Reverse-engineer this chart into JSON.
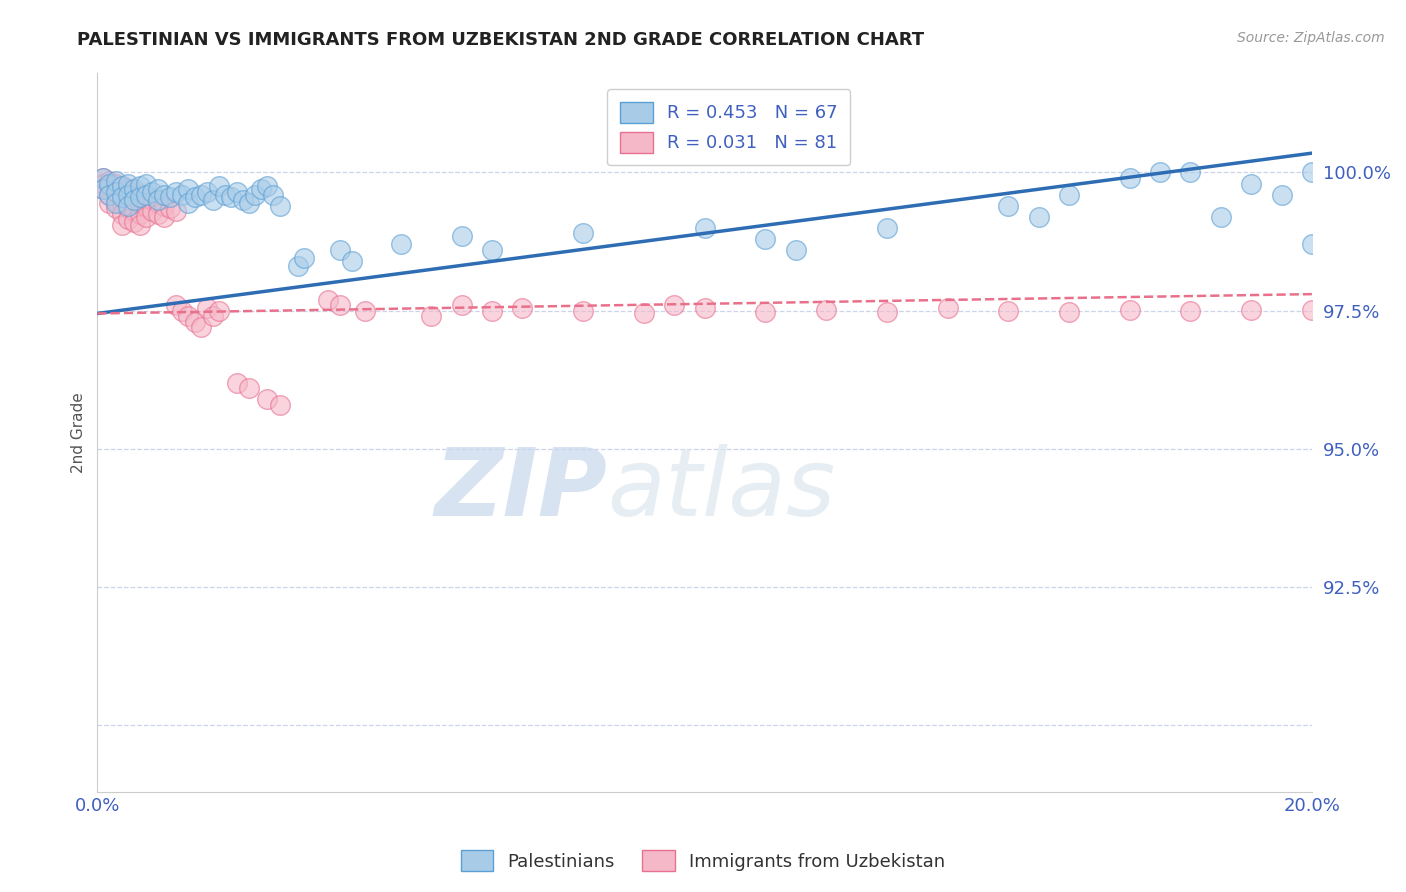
{
  "title": "PALESTINIAN VS IMMIGRANTS FROM UZBEKISTAN 2ND GRADE CORRELATION CHART",
  "source": "Source: ZipAtlas.com",
  "ylabel": "2nd Grade",
  "xmin": 0.0,
  "xmax": 0.2,
  "ymin": 0.888,
  "ymax": 1.018,
  "yticks": [
    0.9,
    0.925,
    0.95,
    0.975,
    1.0
  ],
  "ytick_labels": [
    "",
    "92.5%",
    "95.0%",
    "97.5%",
    "100.0%"
  ],
  "xticks": [
    0.0,
    0.05,
    0.1,
    0.15,
    0.2
  ],
  "xtick_labels": [
    "0.0%",
    "",
    "",
    "",
    "20.0%"
  ],
  "blue_R": 0.453,
  "blue_N": 67,
  "pink_R": 0.031,
  "pink_N": 81,
  "blue_color": "#a8cce8",
  "blue_edge_color": "#5b9fd4",
  "pink_color": "#f5b8c8",
  "pink_edge_color": "#e87090",
  "trend_blue_color": "#2e6db4",
  "trend_pink_color": "#e8708a",
  "grid_color": "#c8cfe8",
  "legend_label_blue": "Palestinians",
  "legend_label_pink": "Immigrants from Uzbekistan",
  "watermark_zip": "ZIP",
  "watermark_atlas": "atlas",
  "blue_scatter": [
    [
      0.001,
      0.999
    ],
    [
      0.001,
      0.997
    ],
    [
      0.002,
      0.998
    ],
    [
      0.002,
      0.996
    ],
    [
      0.003,
      0.9985
    ],
    [
      0.003,
      0.9965
    ],
    [
      0.003,
      0.9945
    ],
    [
      0.004,
      0.9975
    ],
    [
      0.004,
      0.9955
    ],
    [
      0.005,
      0.998
    ],
    [
      0.005,
      0.996
    ],
    [
      0.005,
      0.994
    ],
    [
      0.006,
      0.997
    ],
    [
      0.006,
      0.995
    ],
    [
      0.007,
      0.9975
    ],
    [
      0.007,
      0.9955
    ],
    [
      0.008,
      0.998
    ],
    [
      0.008,
      0.996
    ],
    [
      0.009,
      0.9965
    ],
    [
      0.01,
      0.997
    ],
    [
      0.01,
      0.995
    ],
    [
      0.011,
      0.996
    ],
    [
      0.012,
      0.9955
    ],
    [
      0.013,
      0.9965
    ],
    [
      0.014,
      0.996
    ],
    [
      0.015,
      0.997
    ],
    [
      0.015,
      0.9945
    ],
    [
      0.016,
      0.9955
    ],
    [
      0.017,
      0.996
    ],
    [
      0.018,
      0.9965
    ],
    [
      0.019,
      0.995
    ],
    [
      0.02,
      0.9975
    ],
    [
      0.021,
      0.996
    ],
    [
      0.022,
      0.9955
    ],
    [
      0.023,
      0.9965
    ],
    [
      0.024,
      0.995
    ],
    [
      0.025,
      0.9945
    ],
    [
      0.026,
      0.996
    ],
    [
      0.027,
      0.997
    ],
    [
      0.028,
      0.9975
    ],
    [
      0.029,
      0.996
    ],
    [
      0.03,
      0.994
    ],
    [
      0.033,
      0.983
    ],
    [
      0.034,
      0.9845
    ],
    [
      0.04,
      0.986
    ],
    [
      0.042,
      0.984
    ],
    [
      0.05,
      0.987
    ],
    [
      0.06,
      0.9885
    ],
    [
      0.065,
      0.986
    ],
    [
      0.08,
      0.989
    ],
    [
      0.1,
      0.99
    ],
    [
      0.11,
      0.988
    ],
    [
      0.115,
      0.986
    ],
    [
      0.13,
      0.99
    ],
    [
      0.15,
      0.994
    ],
    [
      0.155,
      0.992
    ],
    [
      0.16,
      0.996
    ],
    [
      0.17,
      0.999
    ],
    [
      0.175,
      1.0
    ],
    [
      0.18,
      1.0
    ],
    [
      0.185,
      0.992
    ],
    [
      0.19,
      0.998
    ],
    [
      0.195,
      0.996
    ],
    [
      0.2,
      1.0
    ],
    [
      0.2,
      0.987
    ]
  ],
  "pink_scatter": [
    [
      0.001,
      0.999
    ],
    [
      0.001,
      0.998
    ],
    [
      0.001,
      0.997
    ],
    [
      0.002,
      0.9985
    ],
    [
      0.002,
      0.9975
    ],
    [
      0.002,
      0.996
    ],
    [
      0.002,
      0.9945
    ],
    [
      0.003,
      0.998
    ],
    [
      0.003,
      0.9965
    ],
    [
      0.003,
      0.995
    ],
    [
      0.003,
      0.9935
    ],
    [
      0.004,
      0.9975
    ],
    [
      0.004,
      0.996
    ],
    [
      0.004,
      0.9945
    ],
    [
      0.004,
      0.9925
    ],
    [
      0.004,
      0.9905
    ],
    [
      0.005,
      0.997
    ],
    [
      0.005,
      0.9955
    ],
    [
      0.005,
      0.9935
    ],
    [
      0.005,
      0.9915
    ],
    [
      0.006,
      0.9965
    ],
    [
      0.006,
      0.995
    ],
    [
      0.006,
      0.993
    ],
    [
      0.006,
      0.991
    ],
    [
      0.007,
      0.996
    ],
    [
      0.007,
      0.9945
    ],
    [
      0.007,
      0.9925
    ],
    [
      0.007,
      0.9905
    ],
    [
      0.008,
      0.9955
    ],
    [
      0.008,
      0.994
    ],
    [
      0.008,
      0.992
    ],
    [
      0.009,
      0.995
    ],
    [
      0.009,
      0.993
    ],
    [
      0.01,
      0.9945
    ],
    [
      0.01,
      0.9925
    ],
    [
      0.011,
      0.994
    ],
    [
      0.011,
      0.992
    ],
    [
      0.012,
      0.9935
    ],
    [
      0.013,
      0.993
    ],
    [
      0.013,
      0.976
    ],
    [
      0.014,
      0.975
    ],
    [
      0.015,
      0.974
    ],
    [
      0.016,
      0.973
    ],
    [
      0.017,
      0.972
    ],
    [
      0.018,
      0.9755
    ],
    [
      0.019,
      0.974
    ],
    [
      0.02,
      0.975
    ],
    [
      0.023,
      0.962
    ],
    [
      0.025,
      0.961
    ],
    [
      0.028,
      0.959
    ],
    [
      0.03,
      0.958
    ],
    [
      0.038,
      0.977
    ],
    [
      0.04,
      0.976
    ],
    [
      0.044,
      0.975
    ],
    [
      0.055,
      0.974
    ],
    [
      0.06,
      0.976
    ],
    [
      0.065,
      0.975
    ],
    [
      0.07,
      0.9755
    ],
    [
      0.08,
      0.975
    ],
    [
      0.09,
      0.9745
    ],
    [
      0.095,
      0.976
    ],
    [
      0.1,
      0.9755
    ],
    [
      0.11,
      0.9748
    ],
    [
      0.12,
      0.9752
    ],
    [
      0.13,
      0.9748
    ],
    [
      0.14,
      0.9755
    ],
    [
      0.15,
      0.975
    ],
    [
      0.16,
      0.9748
    ],
    [
      0.17,
      0.9752
    ],
    [
      0.18,
      0.9749
    ],
    [
      0.19,
      0.9751
    ],
    [
      0.2,
      0.9752
    ]
  ],
  "blue_trend_x": [
    0.0,
    0.2
  ],
  "blue_trend_y": [
    0.9745,
    1.0035
  ],
  "pink_trend_x": [
    0.0,
    0.2
  ],
  "pink_trend_y": [
    0.9745,
    0.978
  ]
}
